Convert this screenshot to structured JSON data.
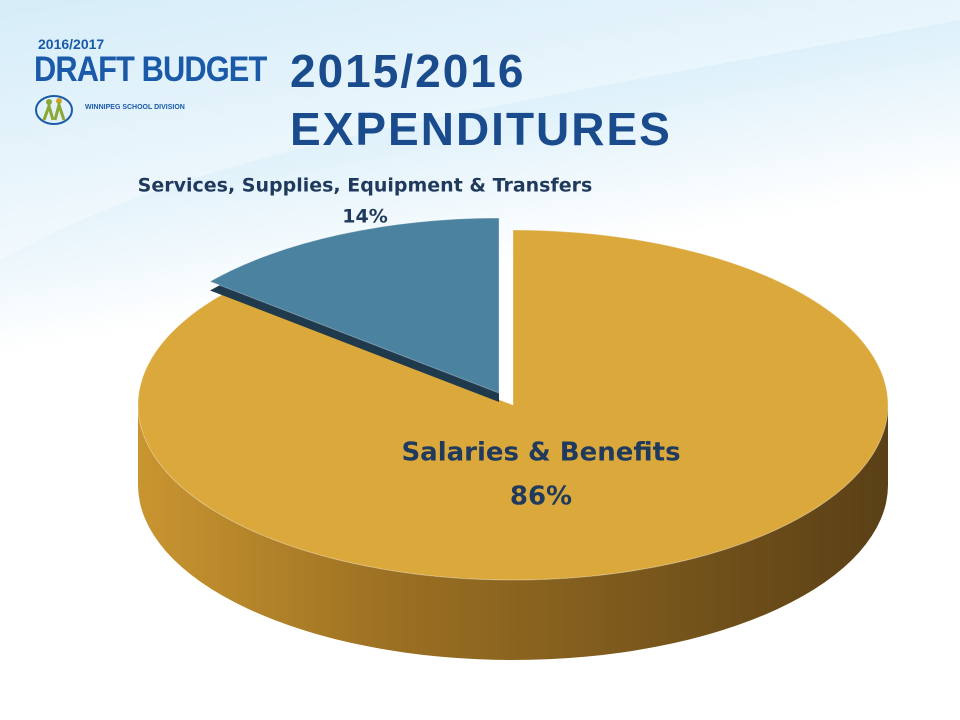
{
  "branding": {
    "year": "2016/2017",
    "title": "DRAFT BUDGET",
    "organization": "WINNIPEG SCHOOL DIVISION"
  },
  "chart_data": {
    "type": "pie",
    "title": "2015/2016 EXPENDITURES",
    "categories": [
      "Salaries & Benefits",
      "Services, Supplies, Equipment & Transfers"
    ],
    "values": [
      86,
      14
    ],
    "value_labels": [
      "86%",
      "14%"
    ],
    "colors": [
      "#dba83c",
      "#4b82a0"
    ]
  }
}
